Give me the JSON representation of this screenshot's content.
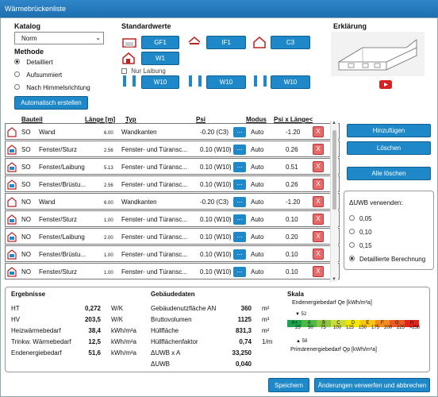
{
  "window": {
    "title": "Wärmebrückenliste"
  },
  "catalog": {
    "label": "Katalog",
    "value": "Norm"
  },
  "method": {
    "label": "Methode",
    "options": [
      "Detailliert",
      "Aufsummiert",
      "Nach Himmelsrichtung"
    ],
    "selected": 0
  },
  "auto_button": "Automatisch erstellen",
  "standard": {
    "label": "Standardwerte",
    "b1": "GF1",
    "b2": "IF1",
    "b3": "C3",
    "b4": "W1",
    "nur_laibung": "Nur Laibung",
    "b5": "W10",
    "b6": "W10",
    "b7": "W10"
  },
  "explanation": {
    "label": "Erklärung"
  },
  "table": {
    "headers": {
      "bauteil": "Bauteil",
      "laenge": "Länge [m]",
      "typ": "Typ",
      "psi": "Psi",
      "modus": "Modus",
      "psixl": "Psi x Länge<"
    },
    "rows": [
      {
        "dir": "SO",
        "bauteil": "Wand",
        "laenge": "6.00",
        "typ": "Wandkanten",
        "psi": "-0.20 (C3)",
        "modus": "Auto",
        "psixl": "-1.20"
      },
      {
        "dir": "SO",
        "bauteil": "Fenster/Sturz",
        "laenge": "2.56",
        "typ": "Fenster- und Türansc...",
        "psi": "0.10 (W10)",
        "modus": "Auto",
        "psixl": "0.26"
      },
      {
        "dir": "SO",
        "bauteil": "Fenster/Laibung",
        "laenge": "5.13",
        "typ": "Fenster- und Türansc...",
        "psi": "0.10 (W10)",
        "modus": "Auto",
        "psixl": "0.51"
      },
      {
        "dir": "SO",
        "bauteil": "Fenster/Brüstu...",
        "laenge": "2.56",
        "typ": "Fenster- und Türansc...",
        "psi": "0.10 (W10)",
        "modus": "Auto",
        "psixl": "0.26"
      },
      {
        "dir": "NO",
        "bauteil": "Wand",
        "laenge": "6.00",
        "typ": "Wandkanten",
        "psi": "-0.20 (C3)",
        "modus": "Auto",
        "psixl": "-1.20"
      },
      {
        "dir": "NO",
        "bauteil": "Fenster/Sturz",
        "laenge": "1.00",
        "typ": "Fenster- und Türansc...",
        "psi": "0.10 (W10)",
        "modus": "Auto",
        "psixl": "0.10"
      },
      {
        "dir": "NO",
        "bauteil": "Fenster/Laibung",
        "laenge": "2.00",
        "typ": "Fenster- und Türansc...",
        "psi": "0.10 (W10)",
        "modus": "Auto",
        "psixl": "0.20"
      },
      {
        "dir": "NO",
        "bauteil": "Fenster/Brüstu...",
        "laenge": "1.00",
        "typ": "Fenster- und Türansc...",
        "psi": "0.10 (W10)",
        "modus": "Auto",
        "psixl": "0.10"
      },
      {
        "dir": "NO",
        "bauteil": "Fenster/Sturz",
        "laenge": "1.00",
        "typ": "Fenster- und Türansc...",
        "psi": "0.10 (W10)",
        "modus": "Auto",
        "psixl": "0.10"
      }
    ],
    "dots": "...",
    "x": "X"
  },
  "side": {
    "add": "Hinzufügen",
    "delete": "Löschen",
    "delete_all": "Alle löschen",
    "uwb_label": "ΔUWB verwenden:",
    "uwb_options": [
      "0,05",
      "0,10",
      "0,15",
      "Detaillierte Berechnung"
    ],
    "uwb_selected": 3
  },
  "results": {
    "label": "Ergebnisse",
    "rows": [
      {
        "name": "HT",
        "value": "0,272",
        "unit": "W/K"
      },
      {
        "name": "HV",
        "value": "203,5",
        "unit": "W/K"
      },
      {
        "name": "Heizwärmebedarf",
        "value": "38,4",
        "unit": "kWh/m²a"
      },
      {
        "name": "Trinkw. Wärmebedarf",
        "value": "12,5",
        "unit": "kWh/m²a"
      },
      {
        "name": "Endenergiebedarf",
        "value": "51,6",
        "unit": "kWh/m²a"
      }
    ]
  },
  "building": {
    "label": "Gebäudedaten",
    "rows": [
      {
        "name": "Gebäudenutzfläche AN",
        "value": "360",
        "unit": "m²"
      },
      {
        "name": "Bruttovolumen",
        "value": "1125",
        "unit": "m³"
      },
      {
        "name": "Hüllfläche",
        "value": "831,3",
        "unit": "m²"
      },
      {
        "name": "Hüllflächenfaktor",
        "value": "0,74",
        "unit": "1/m"
      },
      {
        "name": "ΔUWB x A",
        "value": "33,250",
        "unit": ""
      },
      {
        "name": "ΔUWB",
        "value": "0,040",
        "unit": ""
      }
    ]
  },
  "scale": {
    "label": "Skala",
    "top_label": "Endenergiebedarf Qe [kWh/m²a]",
    "top_marker": "52",
    "bottom_label": "Primärenergiebedarf Qp [kWh/m²a]",
    "bottom_marker": "58",
    "classes": [
      "A+",
      "A",
      "B",
      "C",
      "D",
      "E",
      "F",
      "G",
      "H"
    ],
    "ticks": [
      "25",
      "50",
      "75",
      "100",
      "125",
      "150",
      "175",
      "200",
      "225",
      ">250"
    ],
    "colors": [
      "#1aa34a",
      "#4cb848",
      "#8cc63f",
      "#c9dc3b",
      "#f3e600",
      "#fbc40e",
      "#f58a1f",
      "#ec5a24",
      "#e2231a"
    ]
  },
  "footer": {
    "save": "Speichern",
    "cancel": "Änderungen verwerfen und abbrechen"
  }
}
